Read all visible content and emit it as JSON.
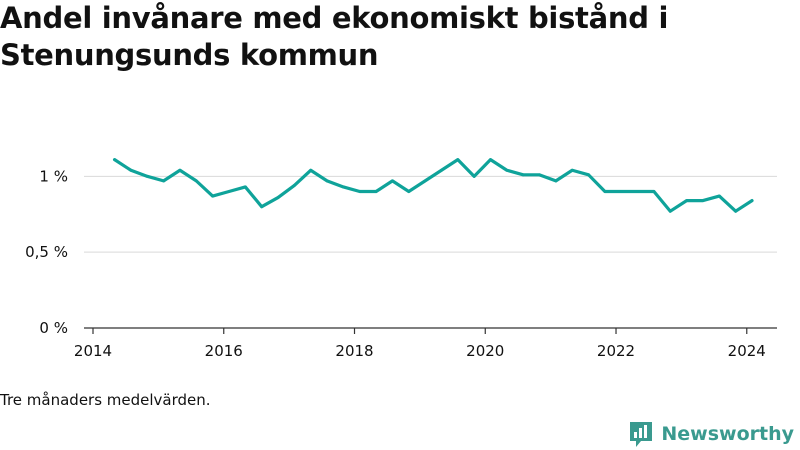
{
  "title": "Andel invånare med ekonomiskt bistånd i Stenungsunds kommun",
  "note": "Tre månaders medelvärden.",
  "brand": {
    "name": "Newsworthy",
    "icon": "newsworthy-logo-icon",
    "color": "#3a9a8f"
  },
  "colors": {
    "line": "#0fa39a",
    "grid": "#d9d9d9",
    "axis": "#333333",
    "text": "#111111"
  },
  "chart_data": {
    "type": "line",
    "title": "Andel invånare med ekonomiskt bistånd i Stenungsunds kommun",
    "xlabel": "",
    "ylabel": "",
    "xlim": [
      2014,
      2024.6
    ],
    "ylim": [
      0,
      1.2
    ],
    "xticks": [
      2014,
      2016,
      2018,
      2020,
      2022,
      2024
    ],
    "xtick_labels": [
      "2014",
      "2016",
      "2018",
      "2020",
      "2022",
      "2024"
    ],
    "yticks": [
      0,
      0.5,
      1
    ],
    "ytick_labels": [
      "0 %",
      "0,5 %",
      "1 %"
    ],
    "grid": true,
    "legend": "none",
    "series": [
      {
        "color": "#0fa39a",
        "x": [
          2014.33,
          2014.58,
          2014.83,
          2015.08,
          2015.33,
          2015.58,
          2015.83,
          2016.08,
          2016.33,
          2016.58,
          2016.83,
          2017.08,
          2017.33,
          2017.58,
          2017.83,
          2018.08,
          2018.33,
          2018.58,
          2018.83,
          2019.08,
          2019.33,
          2019.58,
          2019.83,
          2020.08,
          2020.33,
          2020.58,
          2020.83,
          2021.08,
          2021.33,
          2021.58,
          2021.83,
          2022.08,
          2022.33,
          2022.58,
          2022.83,
          2023.08,
          2023.33,
          2023.58,
          2023.83,
          2024.08
        ],
        "values": [
          1.11,
          1.04,
          1.0,
          0.97,
          1.04,
          0.97,
          0.87,
          0.9,
          0.93,
          0.8,
          0.86,
          0.94,
          1.04,
          0.97,
          0.93,
          0.9,
          0.9,
          0.97,
          0.9,
          0.97,
          1.04,
          1.11,
          1.0,
          1.11,
          1.04,
          1.01,
          1.01,
          0.97,
          1.04,
          1.01,
          0.9,
          0.9,
          0.9,
          0.9,
          0.77,
          0.84,
          0.84,
          0.87,
          0.77,
          0.84
        ]
      }
    ]
  }
}
